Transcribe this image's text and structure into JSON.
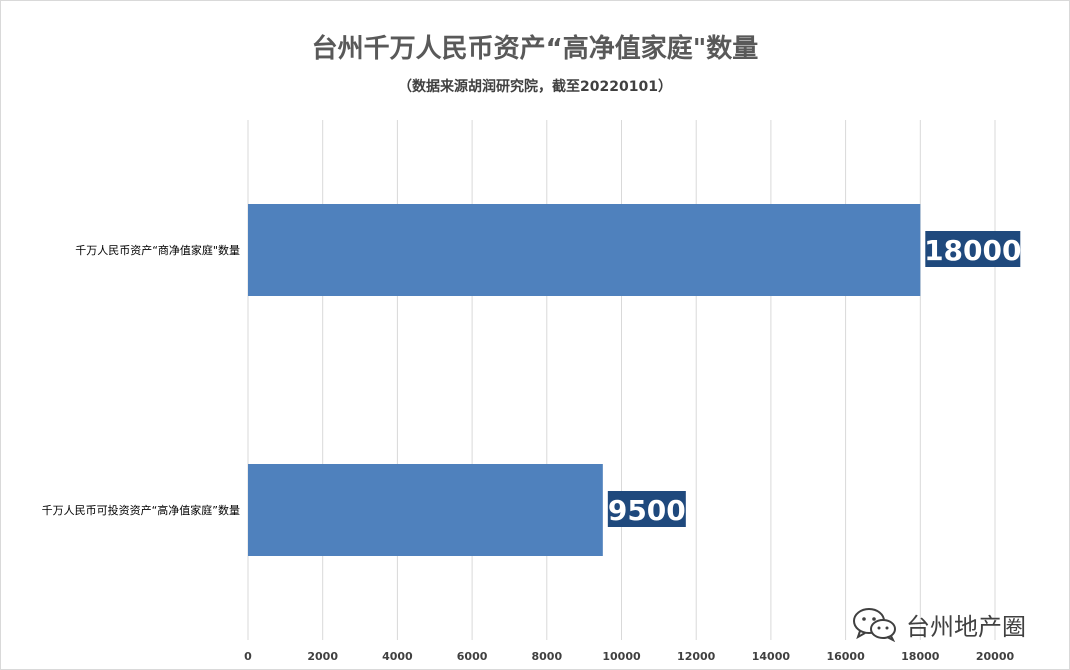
{
  "chart_data": {
    "type": "bar",
    "orientation": "horizontal",
    "title": "台州千万人民币资产“高净值家庭\"数量",
    "subtitle": "（数据来源胡润研究院，截至20220101）",
    "categories": [
      "千万人民币资产“商净值家庭\"数量",
      "千万人民币可投资资产“高净值家庭”数量"
    ],
    "series": [
      {
        "values": [
          18000,
          9500
        ]
      }
    ],
    "data_labels": [
      "18000",
      "9500"
    ],
    "xlim": [
      0,
      20000
    ],
    "x_ticks": [
      0,
      2000,
      4000,
      6000,
      8000,
      10000,
      12000,
      14000,
      16000,
      18000,
      20000
    ],
    "x_tick_labels": [
      "0",
      "2000",
      "4000",
      "6000",
      "8000",
      "10000",
      "12000",
      "14000",
      "16000",
      "18000",
      "20000"
    ],
    "grid": "vertical",
    "legend": "none",
    "colors": {
      "bar": "#4f81bd",
      "label_bg": "#1f497d",
      "label_text": "#ffffff",
      "grid": "#d9d9d9",
      "text": "#404040"
    }
  },
  "watermark": {
    "text": "台州地产圈",
    "icon": "wechat-icon"
  }
}
